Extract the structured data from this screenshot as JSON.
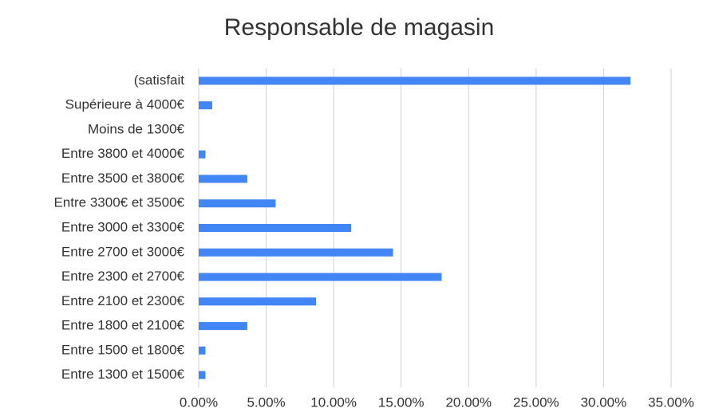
{
  "chart_data": {
    "type": "bar",
    "orientation": "horizontal",
    "title": "Responsable de magasin",
    "categories": [
      "(satisfait",
      "Supérieure à 4000€",
      "Moins de 1300€",
      "Entre 3800 et 4000€",
      "Entre 3500 et 3800€",
      "Entre 3300€ et 3500€",
      "Entre 3000 et 3300€",
      "Entre 2700 et 3000€",
      "Entre 2300 et 2700€",
      "Entre 2100 et 2300€",
      "Entre 1800 et 2100€",
      "Entre 1500 et 1800€",
      "Entre 1300 et 1500€"
    ],
    "values": [
      32,
      1,
      0,
      0.5,
      3.6,
      5.7,
      11.3,
      14.4,
      18,
      8.7,
      3.6,
      0.5,
      0.5
    ],
    "color": "#4285f4",
    "xlim": [
      0,
      35
    ],
    "xticks": [
      {
        "value": 0,
        "label": "0.00%"
      },
      {
        "value": 5,
        "label": "5.00%"
      },
      {
        "value": 10,
        "label": "10.00%"
      },
      {
        "value": 15,
        "label": "15.00%"
      },
      {
        "value": 20,
        "label": "20.00%"
      },
      {
        "value": 25,
        "label": "25.00%"
      },
      {
        "value": 30,
        "label": "30.00%"
      },
      {
        "value": 35,
        "label": "35.00%"
      }
    ],
    "grid": true
  }
}
